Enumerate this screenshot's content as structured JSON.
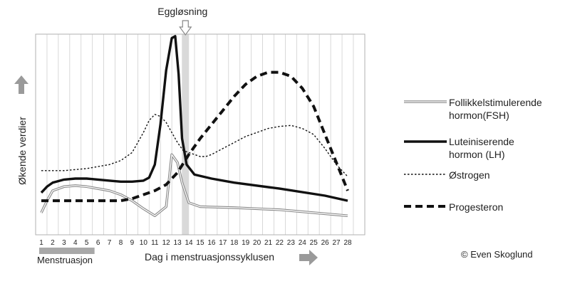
{
  "chart_data": {
    "type": "line",
    "title": "",
    "xlabel": "Dag i menstruasjonssyklusen",
    "ylabel": "Økende verdier",
    "x": [
      1,
      2,
      3,
      4,
      5,
      6,
      7,
      8,
      9,
      10,
      11,
      12,
      13,
      14,
      15,
      16,
      17,
      18,
      19,
      20,
      21,
      22,
      23,
      24,
      25,
      26,
      27,
      28
    ],
    "x_ticks": [
      "1",
      "2",
      "3",
      "4",
      "5",
      "6",
      "7",
      "8",
      "9",
      "10",
      "11",
      "12",
      "13",
      "14",
      "15",
      "16",
      "17",
      "18",
      "19",
      "20",
      "21",
      "22",
      "23",
      "24",
      "25",
      "26",
      "27",
      "28"
    ],
    "y_ticks": "none",
    "ylim": [
      0,
      100
    ],
    "grid": "vertical",
    "annotations": {
      "ovulation": {
        "label": "Eggløsning",
        "day": 13.7
      },
      "menstruation": {
        "label": "Menstruasjon",
        "days": [
          1,
          5.5
        ]
      }
    },
    "series": [
      {
        "name": "Follikkelstimulerende hormon(FSH)",
        "style": "double",
        "color": "#888888",
        "points": [
          [
            1,
            11
          ],
          [
            1.5,
            17
          ],
          [
            2,
            22
          ],
          [
            3,
            24
          ],
          [
            4,
            24.5
          ],
          [
            5,
            24
          ],
          [
            6,
            23
          ],
          [
            7,
            22
          ],
          [
            8,
            20
          ],
          [
            9,
            17
          ],
          [
            10,
            13
          ],
          [
            11,
            9.5
          ],
          [
            12,
            14
          ],
          [
            12.5,
            40
          ],
          [
            13,
            36
          ],
          [
            13.4,
            26
          ],
          [
            14,
            16
          ],
          [
            15,
            14
          ],
          [
            18,
            13.5
          ],
          [
            22,
            12.5
          ],
          [
            28,
            9.5
          ]
        ]
      },
      {
        "name": "Luteiniserende hormon (LH)",
        "style": "solid",
        "color": "#111111",
        "points": [
          [
            1,
            21
          ],
          [
            1.5,
            24
          ],
          [
            2,
            26
          ],
          [
            3,
            27.5
          ],
          [
            4,
            28
          ],
          [
            5,
            28
          ],
          [
            6,
            27.5
          ],
          [
            7,
            27
          ],
          [
            8,
            26.5
          ],
          [
            9,
            26.5
          ],
          [
            10,
            27
          ],
          [
            10.5,
            28.5
          ],
          [
            11,
            35
          ],
          [
            11.5,
            55
          ],
          [
            12,
            82
          ],
          [
            12.5,
            98
          ],
          [
            12.8,
            99
          ],
          [
            13.1,
            80
          ],
          [
            13.4,
            48
          ],
          [
            13.8,
            35
          ],
          [
            14.5,
            30
          ],
          [
            16,
            28
          ],
          [
            18,
            26
          ],
          [
            22,
            23
          ],
          [
            26,
            19.5
          ],
          [
            28,
            17
          ]
        ]
      },
      {
        "name": "Østrogen",
        "style": "dotted",
        "color": "#111111",
        "points": [
          [
            1,
            32
          ],
          [
            3,
            32
          ],
          [
            5,
            33
          ],
          [
            7,
            35
          ],
          [
            8,
            37
          ],
          [
            9,
            41
          ],
          [
            10,
            51
          ],
          [
            10.5,
            57
          ],
          [
            11,
            60
          ],
          [
            11.5,
            59
          ],
          [
            12,
            56
          ],
          [
            12.5,
            51
          ],
          [
            13,
            46
          ],
          [
            13.5,
            42
          ],
          [
            14,
            41
          ],
          [
            15,
            39
          ],
          [
            15.5,
            39
          ],
          [
            16,
            40
          ],
          [
            17,
            43
          ],
          [
            18,
            46
          ],
          [
            19,
            49
          ],
          [
            20,
            51
          ],
          [
            21,
            53
          ],
          [
            22,
            54
          ],
          [
            23,
            54.5
          ],
          [
            24,
            53
          ],
          [
            25,
            50
          ],
          [
            26,
            43
          ],
          [
            27,
            35
          ],
          [
            28,
            29
          ]
        ]
      },
      {
        "name": "Progesteron",
        "style": "dashed",
        "color": "#111111",
        "points": [
          [
            1,
            17
          ],
          [
            3,
            17
          ],
          [
            5,
            17
          ],
          [
            6,
            17
          ],
          [
            7,
            17
          ],
          [
            8,
            17
          ],
          [
            9,
            18
          ],
          [
            10,
            20
          ],
          [
            11,
            22
          ],
          [
            12,
            25
          ],
          [
            13,
            31
          ],
          [
            14,
            40
          ],
          [
            15,
            48
          ],
          [
            16,
            55
          ],
          [
            17,
            62
          ],
          [
            18,
            69
          ],
          [
            19,
            75
          ],
          [
            20,
            79
          ],
          [
            21,
            81
          ],
          [
            22,
            81
          ],
          [
            23,
            79
          ],
          [
            24,
            73
          ],
          [
            25,
            64
          ],
          [
            26,
            50
          ],
          [
            27,
            36
          ],
          [
            28,
            22
          ]
        ]
      }
    ]
  },
  "legend": {
    "fsh": [
      "Follikkelstimulerende",
      "hormon(FSH)"
    ],
    "lh": [
      "Luteiniserende",
      "hormon (LH)"
    ],
    "ostrogen": "Østrogen",
    "progesteron": "Progesteron"
  },
  "copyright": "© Even Skoglund",
  "colors": {
    "arrow": "#9a9a9a",
    "menstruation_bar": "#a8a8a8",
    "ovulation_band": "#d9d9d9",
    "frame": "#b0b0b0"
  }
}
